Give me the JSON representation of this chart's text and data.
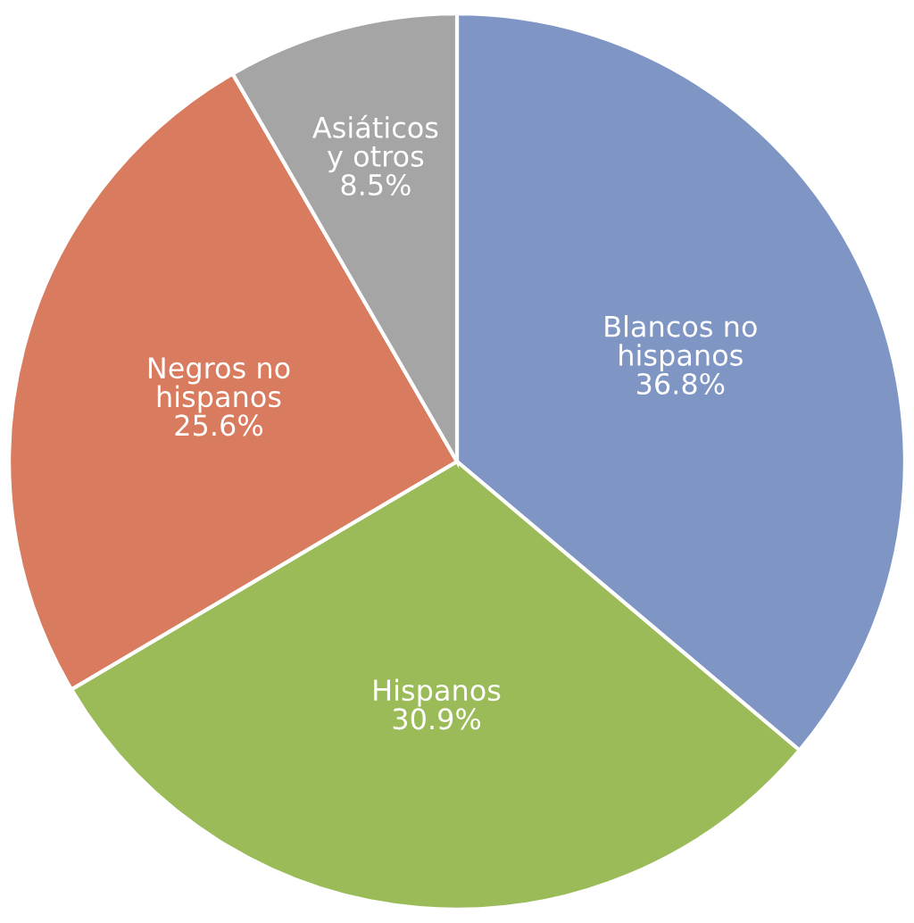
{
  "chart_data": {
    "type": "pie",
    "categories": [
      "Blancos no\nhispanos",
      "Hispanos",
      "Negros no\nhispanos",
      "Asiáticos\ny otros"
    ],
    "values": [
      36.8,
      30.9,
      25.6,
      8.5
    ],
    "value_labels": [
      "36.8%",
      "30.9%",
      "25.6%",
      "8.5%"
    ],
    "colors": [
      "#7f96c4",
      "#9bbb59",
      "#d97b5f",
      "#a5a5a5"
    ],
    "legend": false
  }
}
